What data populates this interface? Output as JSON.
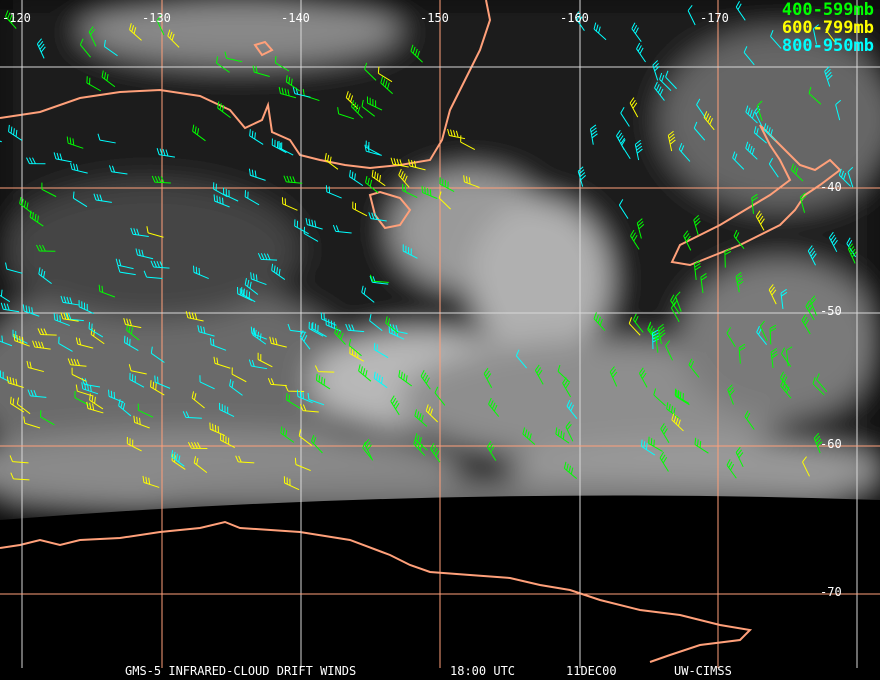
{
  "title_bar": {
    "product": "GMS-5 INFRARED-CLOUD DRIFT WINDS",
    "time": "18:00 UTC",
    "date": "11DEC00",
    "source": "UW-CIMSS"
  },
  "legend": [
    {
      "label": "400-599mb",
      "color": "#00ff00"
    },
    {
      "label": "600-799mb",
      "color": "#ffff00"
    },
    {
      "label": "800-950mb",
      "color": "#00ffff"
    }
  ],
  "longitude_labels": [
    "-120",
    "-130",
    "-140",
    "-150",
    "-160",
    "-170"
  ],
  "latitude_labels": [
    "-40",
    "-50",
    "-60",
    "-70"
  ],
  "colors": {
    "coastline": "#ffa07a",
    "grid_orange": "#ffa07a",
    "grid_white": "#d8d8d8",
    "background": "#000000"
  }
}
